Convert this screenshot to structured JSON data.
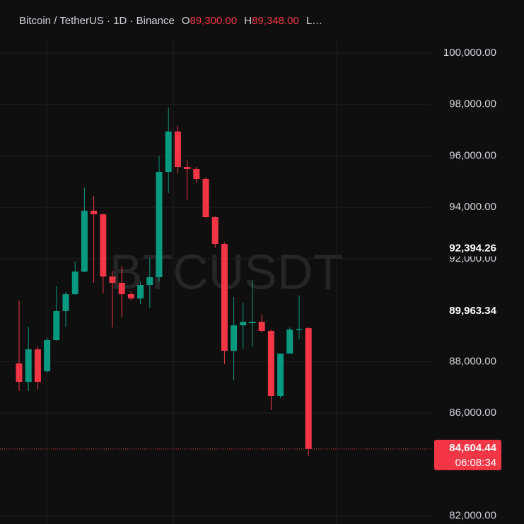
{
  "chart_data": {
    "type": "candlestick",
    "title": "Bitcoin / TetherUS · 1D · Binance",
    "header_fields": [
      {
        "key": "O",
        "value": "89,300.00"
      },
      {
        "key": "H",
        "value": "89,348.00"
      },
      {
        "key": "L…"
      }
    ],
    "watermark": "BTCUSDT",
    "up_color": "#089981",
    "down_color": "#f23645",
    "open": [
      87928,
      87213,
      88478,
      87625,
      88835,
      89962,
      90622,
      91503,
      93868,
      93730,
      91310,
      91063,
      90622,
      90458,
      90980,
      91283,
      95380,
      96948,
      95573,
      95490,
      95105,
      93620,
      92575,
      88423,
      89412,
      89495,
      89550,
      89193,
      86663,
      88313,
      89248,
      89300
    ],
    "high": [
      90375,
      89357,
      88590,
      88918,
      90925,
      90705,
      91888,
      94775,
      94445,
      93758,
      91530,
      91723,
      90732,
      91118,
      92025,
      96013,
      97883,
      97168,
      95848,
      95573,
      95160,
      93648,
      92630,
      90513,
      90293,
      91173,
      89825,
      89248,
      88313,
      89330,
      90568,
      89348
    ],
    "low": [
      86855,
      86855,
      86937,
      87570,
      88808,
      89357,
      90595,
      91475,
      91063,
      90650,
      89330,
      89743,
      90375,
      90238,
      90100,
      91118,
      94555,
      95325,
      94280,
      94968,
      93593,
      92438,
      87900,
      87268,
      88505,
      88588,
      89138,
      86113,
      86580,
      88313,
      88863,
      84325
    ],
    "close": [
      87213,
      88478,
      87213,
      88835,
      89962,
      90622,
      91503,
      93868,
      93730,
      91310,
      91063,
      90622,
      90458,
      90980,
      91283,
      95380,
      96948,
      95573,
      95490,
      95105,
      93620,
      92575,
      88423,
      89412,
      89550,
      89550,
      89193,
      86663,
      88313,
      89248,
      89275,
      84604.44
    ],
    "ylim": [
      81685,
      102063
    ],
    "yticks": [
      {
        "value": 82000,
        "label": "82,000.00"
      },
      {
        "value": 86000,
        "label": "86,000.00"
      },
      {
        "value": 88000,
        "label": "88,000.00"
      },
      {
        "value": 92000,
        "label": "92,000.00"
      },
      {
        "value": 94000,
        "label": "94,000.00"
      },
      {
        "value": 96000,
        "label": "96,000.00"
      },
      {
        "value": 98000,
        "label": "98,000.00"
      },
      {
        "value": 100000,
        "label": "100,000.00"
      }
    ],
    "price_labels": [
      {
        "value": 92394.26,
        "label": "92,394.26"
      },
      {
        "value": 89963.34,
        "label": "89,963.34"
      }
    ],
    "last_price": {
      "value": 84604.44,
      "label": "84,604.44",
      "countdown": "06:08:34"
    },
    "grid": true
  }
}
